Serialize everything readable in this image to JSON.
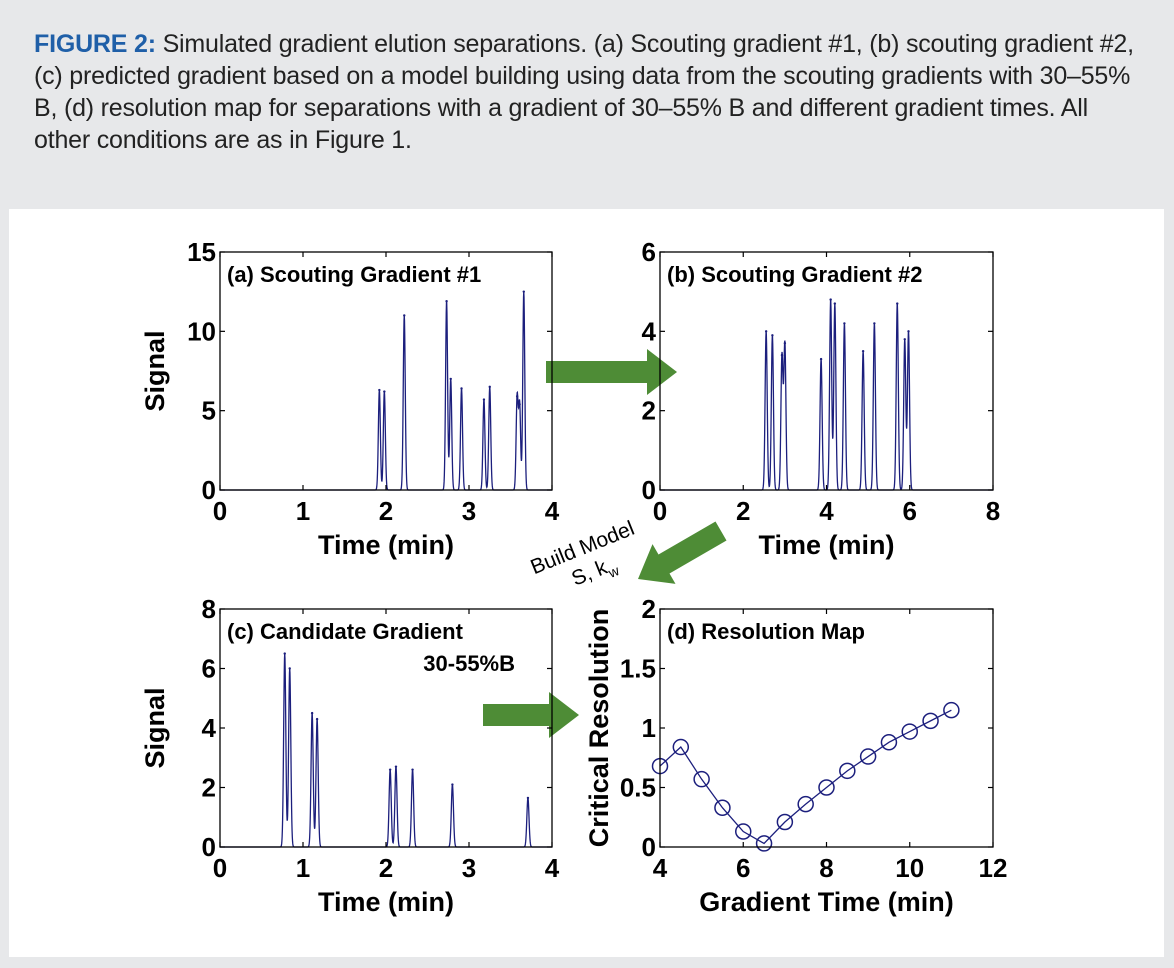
{
  "caption": {
    "lead": "FIGURE 2:",
    "text": " Simulated gradient elution separations. (a) Scouting gradient #1, (b) scouting gradient #2, (c) predicted gradient based on a model building using data from the scouting gradients with 30–55% B, (d) resolution map for separations with a gradient of 30–55% B and different gradient times. All other conditions are as in Figure 1."
  },
  "annotation": {
    "line1": "Build Model",
    "line2": "S, k",
    "sub": "w"
  },
  "colors": {
    "trace": "#1c1f7d",
    "arrow": "#4e8c36",
    "axis": "#000000"
  },
  "chart_data": [
    {
      "id": "a",
      "type": "line",
      "title": "(a) Scouting Gradient #1",
      "subtitle": "",
      "xlabel": "Time (min)",
      "ylabel": "Signal",
      "xlim": [
        0,
        4
      ],
      "ylim": [
        0,
        15
      ],
      "xticks": [
        0,
        1,
        2,
        3,
        4
      ],
      "yticks": [
        0,
        5,
        10,
        15
      ],
      "peak_width": 0.012,
      "peaks": [
        {
          "t": 1.92,
          "h": 6.3
        },
        {
          "t": 1.98,
          "h": 6.2
        },
        {
          "t": 2.22,
          "h": 11.0
        },
        {
          "t": 2.73,
          "h": 11.9
        },
        {
          "t": 2.78,
          "h": 7.0
        },
        {
          "t": 2.91,
          "h": 6.4
        },
        {
          "t": 3.18,
          "h": 5.7
        },
        {
          "t": 3.25,
          "h": 6.5
        },
        {
          "t": 3.58,
          "h": 5.9
        },
        {
          "t": 3.61,
          "h": 5.4
        },
        {
          "t": 3.66,
          "h": 12.5
        }
      ]
    },
    {
      "id": "b",
      "type": "line",
      "title": "(b) Scouting Gradient #2",
      "subtitle": "",
      "xlabel": "Time (min)",
      "ylabel": "",
      "xlim": [
        0,
        8
      ],
      "ylim": [
        0,
        6
      ],
      "xticks": [
        0,
        2,
        4,
        6,
        8
      ],
      "yticks": [
        0,
        2,
        4,
        6
      ],
      "peak_width": 0.025,
      "peaks": [
        {
          "t": 2.55,
          "h": 4.0
        },
        {
          "t": 2.7,
          "h": 3.9
        },
        {
          "t": 2.93,
          "h": 3.4
        },
        {
          "t": 3.0,
          "h": 3.7
        },
        {
          "t": 3.87,
          "h": 3.3
        },
        {
          "t": 4.1,
          "h": 4.8
        },
        {
          "t": 4.2,
          "h": 4.7
        },
        {
          "t": 4.43,
          "h": 4.2
        },
        {
          "t": 4.88,
          "h": 3.5
        },
        {
          "t": 5.15,
          "h": 4.2
        },
        {
          "t": 5.7,
          "h": 4.7
        },
        {
          "t": 5.88,
          "h": 3.8
        },
        {
          "t": 5.97,
          "h": 4.0
        }
      ]
    },
    {
      "id": "c",
      "type": "line",
      "title": "(c) Candidate Gradient",
      "subtitle": "30-55%B",
      "xlabel": "Time (min)",
      "ylabel": "Signal",
      "xlim": [
        0,
        4
      ],
      "ylim": [
        0,
        8
      ],
      "xticks": [
        0,
        1,
        2,
        3,
        4
      ],
      "yticks": [
        0,
        2,
        4,
        6,
        8
      ],
      "peak_width": 0.013,
      "peaks": [
        {
          "t": 0.78,
          "h": 6.5
        },
        {
          "t": 0.84,
          "h": 6.0
        },
        {
          "t": 1.11,
          "h": 4.5
        },
        {
          "t": 1.17,
          "h": 4.3
        },
        {
          "t": 2.05,
          "h": 2.6
        },
        {
          "t": 2.12,
          "h": 2.7
        },
        {
          "t": 2.32,
          "h": 2.6
        },
        {
          "t": 2.8,
          "h": 2.1
        },
        {
          "t": 3.71,
          "h": 1.65
        }
      ]
    },
    {
      "id": "d",
      "type": "line",
      "title": "(d) Resolution Map",
      "subtitle": "",
      "xlabel": "Gradient Time (min)",
      "ylabel": "Critical Resolution",
      "xlim": [
        4,
        12
      ],
      "ylim": [
        0,
        2
      ],
      "xticks": [
        4,
        6,
        8,
        10,
        12
      ],
      "yticks": [
        0,
        0.5,
        1,
        1.5,
        2
      ],
      "points": [
        {
          "x": 4.0,
          "y": 0.68
        },
        {
          "x": 4.5,
          "y": 0.84
        },
        {
          "x": 5.0,
          "y": 0.57
        },
        {
          "x": 5.5,
          "y": 0.33
        },
        {
          "x": 6.0,
          "y": 0.13
        },
        {
          "x": 6.5,
          "y": 0.03
        },
        {
          "x": 7.0,
          "y": 0.21
        },
        {
          "x": 7.5,
          "y": 0.36
        },
        {
          "x": 8.0,
          "y": 0.5
        },
        {
          "x": 8.5,
          "y": 0.64
        },
        {
          "x": 9.0,
          "y": 0.76
        },
        {
          "x": 9.5,
          "y": 0.88
        },
        {
          "x": 10.0,
          "y": 0.97
        },
        {
          "x": 10.5,
          "y": 1.06
        },
        {
          "x": 11.0,
          "y": 1.15
        }
      ]
    }
  ]
}
